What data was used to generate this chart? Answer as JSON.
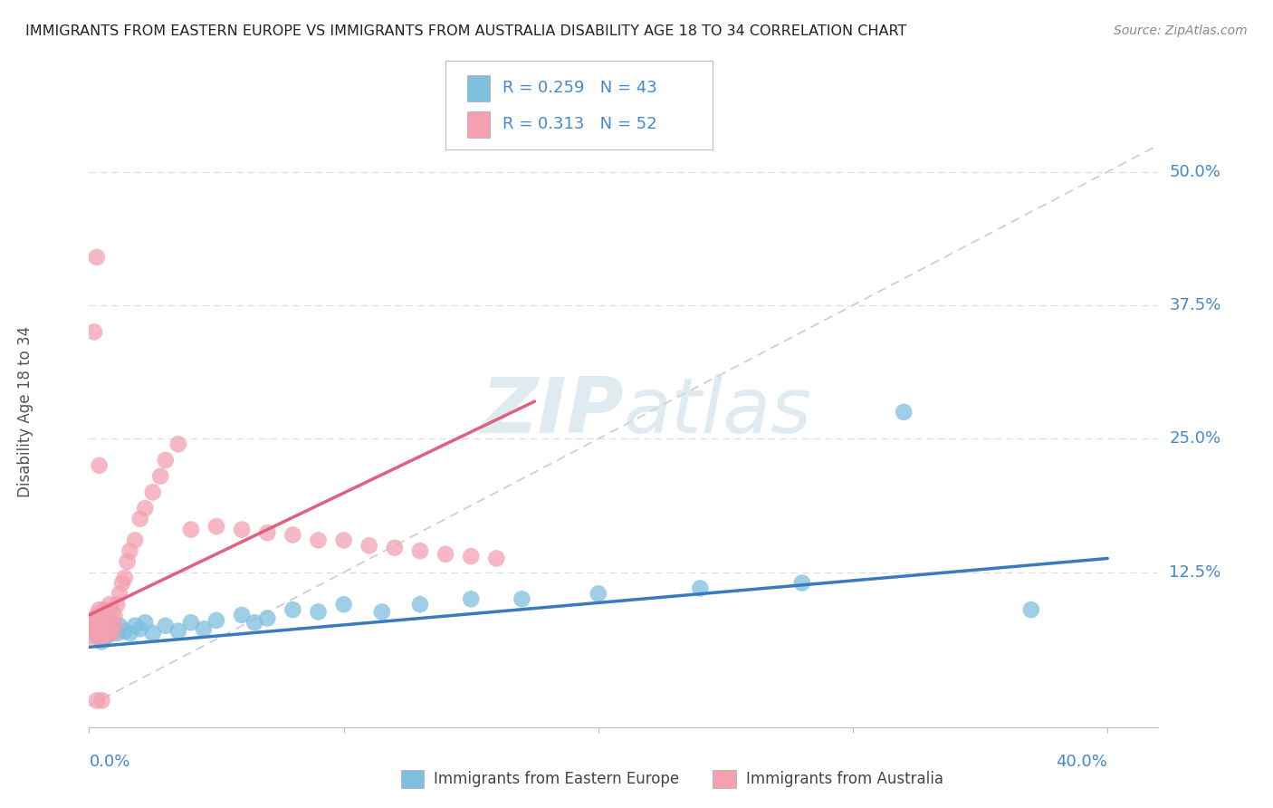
{
  "title": "IMMIGRANTS FROM EASTERN EUROPE VS IMMIGRANTS FROM AUSTRALIA DISABILITY AGE 18 TO 34 CORRELATION CHART",
  "source": "Source: ZipAtlas.com",
  "ylabel": "Disability Age 18 to 34",
  "xlim": [
    0.0,
    0.42
  ],
  "ylim": [
    -0.02,
    0.57
  ],
  "ytick_vals": [
    0.125,
    0.25,
    0.375,
    0.5
  ],
  "ytick_labels": [
    "12.5%",
    "25.0%",
    "37.5%",
    "50.0%"
  ],
  "legend_r1": "R = 0.259",
  "legend_n1": "N = 43",
  "legend_r2": "R = 0.313",
  "legend_n2": "N = 52",
  "legend_label1": "Immigrants from Eastern Europe",
  "legend_label2": "Immigrants from Australia",
  "color_blue": "#7fbfdf",
  "color_pink": "#f4a0b0",
  "watermark_color": "#d8e8f0",
  "blue_trend_x": [
    0.0,
    0.4
  ],
  "blue_trend_y": [
    0.055,
    0.138
  ],
  "pink_trend_x": [
    0.0,
    0.175
  ],
  "pink_trend_y": [
    0.085,
    0.285
  ],
  "ref_line_x": [
    0.0,
    0.42
  ],
  "ref_line_y": [
    0.0,
    0.525
  ],
  "blue_x": [
    0.002,
    0.003,
    0.003,
    0.004,
    0.004,
    0.005,
    0.005,
    0.006,
    0.006,
    0.007,
    0.007,
    0.008,
    0.009,
    0.01,
    0.011,
    0.012,
    0.014,
    0.016,
    0.018,
    0.02,
    0.022,
    0.025,
    0.03,
    0.035,
    0.04,
    0.045,
    0.05,
    0.06,
    0.065,
    0.07,
    0.08,
    0.09,
    0.1,
    0.115,
    0.13,
    0.15,
    0.17,
    0.2,
    0.24,
    0.28,
    0.32,
    0.37,
    0.005
  ],
  "blue_y": [
    0.07,
    0.075,
    0.065,
    0.08,
    0.07,
    0.068,
    0.075,
    0.072,
    0.078,
    0.065,
    0.08,
    0.068,
    0.075,
    0.07,
    0.068,
    0.075,
    0.07,
    0.068,
    0.075,
    0.072,
    0.078,
    0.068,
    0.075,
    0.07,
    0.078,
    0.072,
    0.08,
    0.085,
    0.078,
    0.082,
    0.09,
    0.088,
    0.095,
    0.088,
    0.095,
    0.1,
    0.1,
    0.105,
    0.11,
    0.115,
    0.275,
    0.09,
    0.06
  ],
  "pink_x": [
    0.001,
    0.001,
    0.002,
    0.002,
    0.003,
    0.003,
    0.004,
    0.004,
    0.005,
    0.005,
    0.005,
    0.006,
    0.006,
    0.007,
    0.007,
    0.008,
    0.008,
    0.009,
    0.009,
    0.01,
    0.01,
    0.011,
    0.012,
    0.013,
    0.014,
    0.015,
    0.016,
    0.018,
    0.02,
    0.022,
    0.025,
    0.028,
    0.03,
    0.035,
    0.04,
    0.05,
    0.06,
    0.07,
    0.08,
    0.09,
    0.1,
    0.11,
    0.12,
    0.13,
    0.14,
    0.15,
    0.16,
    0.003,
    0.002,
    0.004,
    0.003,
    0.005
  ],
  "pink_y": [
    0.065,
    0.075,
    0.07,
    0.08,
    0.075,
    0.085,
    0.065,
    0.09,
    0.07,
    0.08,
    0.065,
    0.075,
    0.09,
    0.068,
    0.085,
    0.072,
    0.095,
    0.068,
    0.088,
    0.075,
    0.085,
    0.095,
    0.105,
    0.115,
    0.12,
    0.135,
    0.145,
    0.155,
    0.175,
    0.185,
    0.2,
    0.215,
    0.23,
    0.245,
    0.165,
    0.168,
    0.165,
    0.162,
    0.16,
    0.155,
    0.155,
    0.15,
    0.148,
    0.145,
    0.142,
    0.14,
    0.138,
    0.42,
    0.35,
    0.225,
    0.005,
    0.005
  ]
}
